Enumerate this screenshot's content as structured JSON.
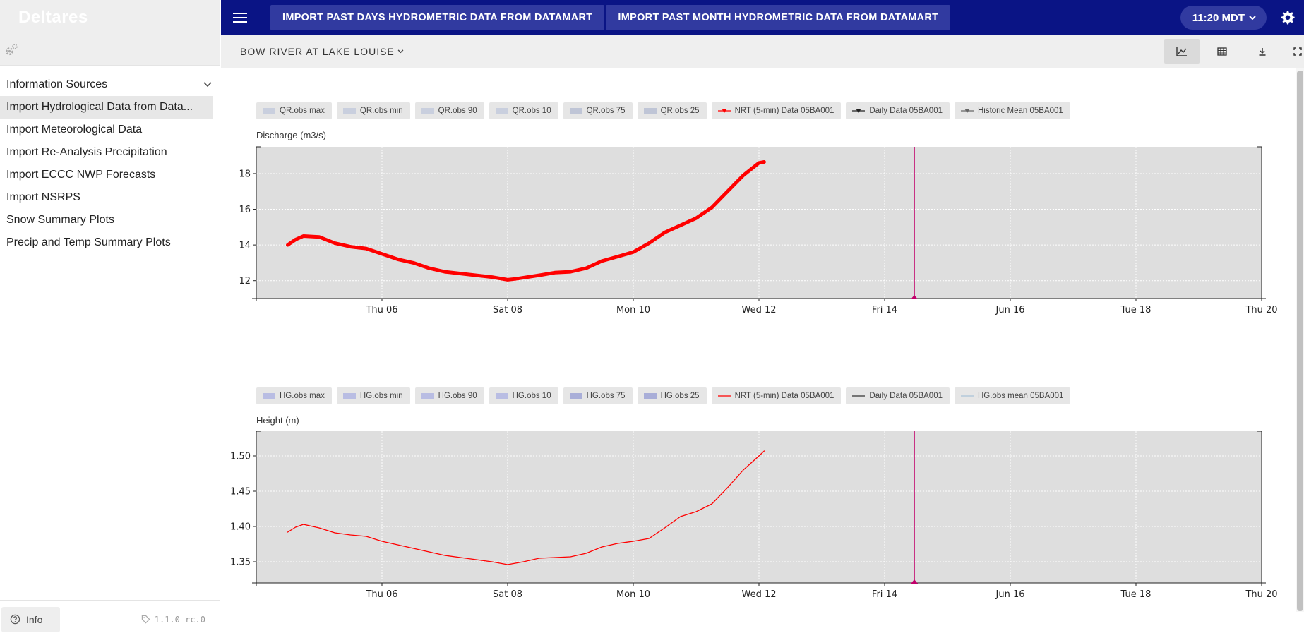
{
  "sidebar": {
    "brand": "Deltares",
    "menu_header": "Information Sources",
    "items": [
      {
        "label": "Import Hydrological Data from Data..."
      },
      {
        "label": "Import Meteorological Data"
      },
      {
        "label": "Import Re-Analysis Precipitation"
      },
      {
        "label": "Import ECCC NWP Forecasts"
      },
      {
        "label": "Import NSRPS"
      },
      {
        "label": "Snow Summary Plots"
      },
      {
        "label": "Precip and Temp Summary Plots"
      }
    ],
    "info_label": "Info",
    "version": "1.1.0-rc.0"
  },
  "topbar": {
    "buttons": [
      {
        "label": "IMPORT PAST DAYS HYDROMETRIC DATA FROM DATAMART"
      },
      {
        "label": "IMPORT PAST MONTH HYDROMETRIC DATA FROM DATAMART"
      }
    ],
    "time": "11:20 MDT"
  },
  "toolbar": {
    "location": "BOW RIVER AT LAKE LOUISE"
  },
  "colors": {
    "topbar": "#0a1485",
    "topbar_button": "#313aa0",
    "nrt_series": "#ff0000",
    "now_marker": "#c2006b",
    "plot_bg": "#dedede"
  },
  "chart_data": [
    {
      "type": "line",
      "ylabel": "Discharge (m3/s)",
      "ylim": [
        11.0,
        19.5
      ],
      "yticks": [
        12,
        14,
        16,
        18
      ],
      "xlim": [
        "2024-06-04",
        "2024-06-20"
      ],
      "xticks": [
        {
          "date": "2024-06-06",
          "label": "Thu 06"
        },
        {
          "date": "2024-06-08",
          "label": "Sat 08"
        },
        {
          "date": "2024-06-10",
          "label": "Mon 10"
        },
        {
          "date": "2024-06-12",
          "label": "Wed 12"
        },
        {
          "date": "2024-06-14",
          "label": "Fri 14"
        },
        {
          "date": "2024-06-16",
          "label": "Jun 16"
        },
        {
          "date": "2024-06-18",
          "label": "Tue 18"
        },
        {
          "date": "2024-06-20",
          "label": "Thu 20"
        }
      ],
      "now": "2024-06-14 11:20",
      "grid": true,
      "legend": [
        {
          "label": "QR.obs max",
          "kind": "box",
          "color": "#c9cfde"
        },
        {
          "label": "QR.obs min",
          "kind": "box",
          "color": "#c9cfde"
        },
        {
          "label": "QR.obs 90",
          "kind": "box",
          "color": "#c9cfde"
        },
        {
          "label": "QR.obs 10",
          "kind": "box",
          "color": "#c9cfde"
        },
        {
          "label": "QR.obs 75",
          "kind": "box",
          "color": "#bfc5d6"
        },
        {
          "label": "QR.obs 25",
          "kind": "box",
          "color": "#bfc5d6"
        },
        {
          "label": "NRT (5-min) Data 05BA001",
          "kind": "marker",
          "color": "#ff0000"
        },
        {
          "label": "Daily Data 05BA001",
          "kind": "marker",
          "color": "#222222"
        },
        {
          "label": "Historic Mean 05BA001",
          "kind": "marker",
          "color": "#666666"
        }
      ],
      "series": [
        {
          "name": "NRT (5-min) Data 05BA001",
          "color": "#ff0000",
          "width": 5,
          "points": [
            [
              "2024-06-04 12:00",
              14.0
            ],
            [
              "2024-06-04 15:00",
              14.3
            ],
            [
              "2024-06-04 18:00",
              14.5
            ],
            [
              "2024-06-05 00:00",
              14.45
            ],
            [
              "2024-06-05 06:00",
              14.1
            ],
            [
              "2024-06-05 12:00",
              13.9
            ],
            [
              "2024-06-05 18:00",
              13.8
            ],
            [
              "2024-06-06 00:00",
              13.5
            ],
            [
              "2024-06-06 06:00",
              13.2
            ],
            [
              "2024-06-06 12:00",
              13.0
            ],
            [
              "2024-06-06 18:00",
              12.7
            ],
            [
              "2024-06-07 00:00",
              12.5
            ],
            [
              "2024-06-07 06:00",
              12.4
            ],
            [
              "2024-06-07 12:00",
              12.3
            ],
            [
              "2024-06-07 18:00",
              12.2
            ],
            [
              "2024-06-08 00:00",
              12.05
            ],
            [
              "2024-06-08 03:00",
              12.1
            ],
            [
              "2024-06-08 12:00",
              12.3
            ],
            [
              "2024-06-08 18:00",
              12.45
            ],
            [
              "2024-06-09 00:00",
              12.5
            ],
            [
              "2024-06-09 06:00",
              12.7
            ],
            [
              "2024-06-09 12:00",
              13.1
            ],
            [
              "2024-06-09 18:00",
              13.35
            ],
            [
              "2024-06-10 00:00",
              13.6
            ],
            [
              "2024-06-10 06:00",
              14.1
            ],
            [
              "2024-06-10 12:00",
              14.7
            ],
            [
              "2024-06-10 18:00",
              15.1
            ],
            [
              "2024-06-11 00:00",
              15.5
            ],
            [
              "2024-06-11 06:00",
              16.1
            ],
            [
              "2024-06-11 12:00",
              17.0
            ],
            [
              "2024-06-11 18:00",
              17.9
            ],
            [
              "2024-06-12 00:00",
              18.6
            ],
            [
              "2024-06-12 02:00",
              18.65
            ]
          ]
        }
      ]
    },
    {
      "type": "line",
      "ylabel": "Height (m)",
      "ylim": [
        1.32,
        1.535
      ],
      "yticks": [
        1.35,
        1.4,
        1.45,
        1.5
      ],
      "ytick_labels": [
        "1.35",
        "1.40",
        "1.45",
        "1.50"
      ],
      "xlim": [
        "2024-06-04",
        "2024-06-20"
      ],
      "xticks": [
        {
          "date": "2024-06-06",
          "label": "Thu 06"
        },
        {
          "date": "2024-06-08",
          "label": "Sat 08"
        },
        {
          "date": "2024-06-10",
          "label": "Mon 10"
        },
        {
          "date": "2024-06-12",
          "label": "Wed 12"
        },
        {
          "date": "2024-06-14",
          "label": "Fri 14"
        },
        {
          "date": "2024-06-16",
          "label": "Jun 16"
        },
        {
          "date": "2024-06-18",
          "label": "Tue 18"
        },
        {
          "date": "2024-06-20",
          "label": "Thu 20"
        }
      ],
      "now": "2024-06-14 11:20",
      "grid": true,
      "legend": [
        {
          "label": "HG.obs max",
          "kind": "box",
          "color": "#b9bde3"
        },
        {
          "label": "HG.obs min",
          "kind": "box",
          "color": "#b9bde3"
        },
        {
          "label": "HG.obs 90",
          "kind": "box",
          "color": "#b9bde3"
        },
        {
          "label": "HG.obs 10",
          "kind": "box",
          "color": "#b9bde3"
        },
        {
          "label": "HG.obs 75",
          "kind": "box",
          "color": "#a9aed8"
        },
        {
          "label": "HG.obs 25",
          "kind": "box",
          "color": "#a9aed8"
        },
        {
          "label": "NRT (5-min) Data 05BA001",
          "kind": "line",
          "color": "#ff0000"
        },
        {
          "label": "Daily Data 05BA001",
          "kind": "line",
          "color": "#333333"
        },
        {
          "label": "HG.obs mean 05BA001",
          "kind": "line",
          "color": "#aac4d8"
        }
      ],
      "series": [
        {
          "name": "NRT (5-min) Data 05BA001",
          "color": "#ff0000",
          "width": 1.3,
          "points": [
            [
              "2024-06-04 12:00",
              1.392
            ],
            [
              "2024-06-04 15:00",
              1.399
            ],
            [
              "2024-06-04 18:00",
              1.403
            ],
            [
              "2024-06-05 00:00",
              1.398
            ],
            [
              "2024-06-05 06:00",
              1.391
            ],
            [
              "2024-06-05 12:00",
              1.388
            ],
            [
              "2024-06-05 18:00",
              1.386
            ],
            [
              "2024-06-06 00:00",
              1.379
            ],
            [
              "2024-06-06 06:00",
              1.374
            ],
            [
              "2024-06-06 12:00",
              1.369
            ],
            [
              "2024-06-06 18:00",
              1.364
            ],
            [
              "2024-06-07 00:00",
              1.359
            ],
            [
              "2024-06-07 06:00",
              1.356
            ],
            [
              "2024-06-07 12:00",
              1.353
            ],
            [
              "2024-06-07 18:00",
              1.35
            ],
            [
              "2024-06-08 00:00",
              1.346
            ],
            [
              "2024-06-08 06:00",
              1.35
            ],
            [
              "2024-06-08 12:00",
              1.355
            ],
            [
              "2024-06-08 18:00",
              1.356
            ],
            [
              "2024-06-09 00:00",
              1.357
            ],
            [
              "2024-06-09 06:00",
              1.362
            ],
            [
              "2024-06-09 12:00",
              1.371
            ],
            [
              "2024-06-09 18:00",
              1.376
            ],
            [
              "2024-06-10 00:00",
              1.379
            ],
            [
              "2024-06-10 06:00",
              1.383
            ],
            [
              "2024-06-10 12:00",
              1.398
            ],
            [
              "2024-06-10 18:00",
              1.414
            ],
            [
              "2024-06-11 00:00",
              1.421
            ],
            [
              "2024-06-11 06:00",
              1.432
            ],
            [
              "2024-06-11 12:00",
              1.455
            ],
            [
              "2024-06-11 18:00",
              1.48
            ],
            [
              "2024-06-12 00:00",
              1.5
            ],
            [
              "2024-06-12 02:00",
              1.507
            ]
          ]
        }
      ]
    }
  ]
}
